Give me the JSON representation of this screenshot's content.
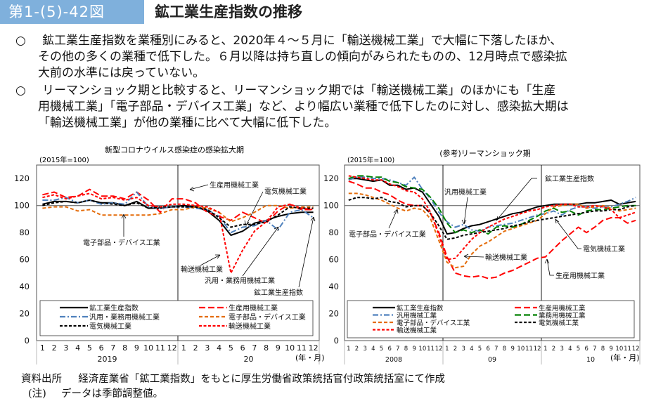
{
  "header": {
    "figure_number": "第1-(5)-42図",
    "title": "鉱工業生産指数の推移"
  },
  "summary": [
    {
      "bullet": "○",
      "lines": [
        "鉱工業生産指数を業種別にみると、2020年４～５月に「輸送機械工業」で大幅に下落したほか、",
        "その他の多くの業種で低下した。６月以降は持ち直しの傾向がみられたものの、12月時点で感染拡",
        "大前の水準には戻っていない。"
      ]
    },
    {
      "bullet": "○",
      "lines": [
        "リーマンショック期と比較すると、リーマンショック期では「輸送機械工業」のほかにも「生産",
        "用機械工業」「電子部品・デバイス工業」など、より幅広い業種で低下したのに対し、感染拡大期は",
        "「輸送機械工業」が他の業種に比べて大幅に低下した。"
      ]
    }
  ],
  "chart_data": [
    {
      "type": "line",
      "title": "新型コロナウイルス感染症の感染拡大期",
      "unit_label": "(2015年=100)",
      "xlabel": "(年・月)",
      "ylim": [
        0,
        130
      ],
      "yticks": [
        0,
        20,
        40,
        60,
        80,
        100,
        120
      ],
      "reference_line": 100,
      "x_month_labels": [
        "1",
        "2",
        "3",
        "4",
        "5",
        "6",
        "7",
        "8",
        "9",
        "10",
        "11",
        "12",
        "1",
        "2",
        "3",
        "4",
        "5",
        "6",
        "7",
        "8",
        "9",
        "10",
        "11",
        "12"
      ],
      "year_groups": [
        {
          "label": "2019",
          "months": 12
        },
        {
          "label": "20",
          "months": 12
        }
      ],
      "legend_position": "bottom-inside",
      "series": [
        {
          "name": "鉱工業生産指数",
          "color": "#000000",
          "style": "solid",
          "values": [
            101,
            103,
            103,
            102,
            104,
            102,
            102,
            100,
            103,
            98,
            98,
            99,
            100,
            99,
            96,
            89,
            78,
            81,
            87,
            89,
            92,
            94,
            95,
            95
          ]
        },
        {
          "name": "生産用機械工業",
          "color": "#ff0000",
          "style": "longdash",
          "values": [
            108,
            110,
            106,
            107,
            112,
            107,
            107,
            105,
            110,
            104,
            95,
            105,
            105,
            102,
            95,
            92,
            89,
            95,
            91,
            87,
            96,
            101,
            97,
            97
          ]
        },
        {
          "name": "汎用・業務用機械工業",
          "color": "#4f81bd",
          "style": "dashdot",
          "values": [
            104,
            104,
            106,
            102,
            104,
            101,
            102,
            101,
            110,
            99,
            98,
            99,
            99,
            98,
            97,
            92,
            80,
            84,
            85,
            89,
            82,
            95,
            97,
            91
          ]
        },
        {
          "name": "電子部品・デバイス工業",
          "color": "#e46c0a",
          "style": "dash",
          "values": [
            98,
            99,
            99,
            96,
            97,
            93,
            93,
            93,
            93,
            93,
            94,
            97,
            97,
            99,
            98,
            95,
            88,
            91,
            95,
            100,
            100,
            98,
            99,
            99
          ]
        },
        {
          "name": "電気機械工業",
          "color": "#000000",
          "style": "shortdash",
          "values": [
            100,
            102,
            103,
            102,
            104,
            102,
            101,
            100,
            102,
            98,
            99,
            99,
            99,
            99,
            97,
            91,
            84,
            86,
            86,
            88,
            93,
            99,
            98,
            98
          ]
        },
        {
          "name": "輸送機械工業",
          "color": "#ff0000",
          "style": "shortdash",
          "values": [
            106,
            108,
            105,
            107,
            109,
            105,
            106,
            104,
            106,
            100,
            99,
            101,
            101,
            100,
            99,
            95,
            50,
            67,
            81,
            88,
            99,
            101,
            98,
            97
          ]
        }
      ],
      "annotations": [
        "生産用機械工業",
        "電気機械工業",
        "電子部品・デバイス工業",
        "輸送機械工業",
        "汎用・業務用機械工業",
        "鉱工業生産指数"
      ]
    },
    {
      "type": "line",
      "title": "(参考)リーマンショック期",
      "unit_label": "(2015年=100)",
      "xlabel": "(年・月)",
      "ylim": [
        0,
        130
      ],
      "yticks": [
        0,
        20,
        40,
        60,
        80,
        100,
        120
      ],
      "reference_line": 100,
      "x_month_labels": [
        "1",
        "2",
        "3",
        "4",
        "5",
        "6",
        "7",
        "8",
        "9",
        "10",
        "11",
        "12",
        "1",
        "2",
        "3",
        "4",
        "5",
        "6",
        "7",
        "8",
        "9",
        "10",
        "11",
        "12",
        "1",
        "2",
        "3",
        "4",
        "5",
        "6",
        "7",
        "8",
        "9",
        "10",
        "11",
        "12"
      ],
      "year_groups": [
        {
          "label": "2008",
          "months": 12
        },
        {
          "label": "09",
          "months": 12
        },
        {
          "label": "10",
          "months": 12
        }
      ],
      "legend_position": "bottom-inside",
      "series": [
        {
          "name": "鉱工業生産指数",
          "color": "#000000",
          "style": "solid",
          "values": [
            120,
            120,
            119,
            118,
            119,
            115,
            115,
            112,
            113,
            110,
            101,
            92,
            79,
            80,
            83,
            85,
            86,
            88,
            90,
            92,
            94,
            95,
            97,
            99,
            100,
            101,
            101,
            101,
            101,
            102,
            102,
            103,
            104,
            101,
            102,
            103
          ]
        },
        {
          "name": "生産用機械工業",
          "color": "#ff0000",
          "style": "longdash",
          "values": [
            118,
            116,
            113,
            113,
            110,
            108,
            104,
            101,
            100,
            100,
            94,
            80,
            62,
            50,
            48,
            47,
            48,
            46,
            47,
            50,
            52,
            55,
            58,
            61,
            62,
            68,
            74,
            79,
            84,
            80,
            84,
            89,
            91,
            91,
            87,
            89
          ]
        },
        {
          "name": "汎用機械工業",
          "color": "#4f81bd",
          "style": "dashdot",
          "values": [
            119,
            121,
            121,
            120,
            120,
            119,
            117,
            115,
            121,
            112,
            105,
            95,
            88,
            84,
            86,
            82,
            81,
            84,
            85,
            86,
            87,
            89,
            91,
            93,
            94,
            96,
            93,
            97,
            99,
            99,
            98,
            99,
            99,
            101,
            103,
            106
          ]
        },
        {
          "name": "業務用機械工業",
          "color": "#008000",
          "style": "longdash",
          "values": [
            120,
            122,
            122,
            121,
            121,
            118,
            117,
            114,
            113,
            112,
            106,
            98,
            87,
            80,
            82,
            80,
            82,
            79,
            84,
            85,
            84,
            86,
            89,
            92,
            96,
            98,
            95,
            96,
            93,
            96,
            97,
            97,
            98,
            99,
            100,
            100
          ]
        },
        {
          "name": "電子部品・デバイス工業",
          "color": "#e46c0a",
          "style": "dash",
          "values": [
            109,
            109,
            108,
            106,
            104,
            101,
            98,
            96,
            98,
            97,
            90,
            74,
            58,
            54,
            55,
            64,
            70,
            73,
            77,
            81,
            83,
            85,
            87,
            89,
            94,
            99,
            100,
            101,
            101,
            98,
            99,
            100,
            98,
            96,
            97,
            98
          ]
        },
        {
          "name": "電気機械工業",
          "color": "#000000",
          "style": "shortdash",
          "values": [
            104,
            106,
            106,
            105,
            106,
            103,
            102,
            99,
            100,
            100,
            94,
            85,
            75,
            76,
            78,
            79,
            80,
            81,
            82,
            83,
            85,
            86,
            88,
            89,
            90,
            91,
            92,
            93,
            94,
            95,
            96,
            96,
            97,
            97,
            99,
            100
          ]
        },
        {
          "name": "輸送機械工業",
          "color": "#ff0000",
          "style": "shortdash",
          "values": [
            122,
            121,
            120,
            119,
            119,
            116,
            114,
            111,
            110,
            105,
            95,
            78,
            60,
            61,
            68,
            75,
            80,
            84,
            87,
            90,
            92,
            94,
            96,
            97,
            99,
            100,
            101,
            101,
            99,
            99,
            100,
            99,
            97,
            91,
            93,
            95
          ]
        }
      ],
      "annotations": [
        "鉱工業生産指数",
        "汎用機械工業",
        "電子部品・デバイス工業",
        "輸送機械工業",
        "電気機械工業",
        "生産用機械工業"
      ]
    }
  ],
  "footer": {
    "source_label": "資料出所",
    "source_text": "経済産業省「鉱工業指数」をもとに厚生労働省政策統括官付政策統括室にて作成",
    "note_label": "(注)",
    "note_text": "データは季節調整値。"
  }
}
